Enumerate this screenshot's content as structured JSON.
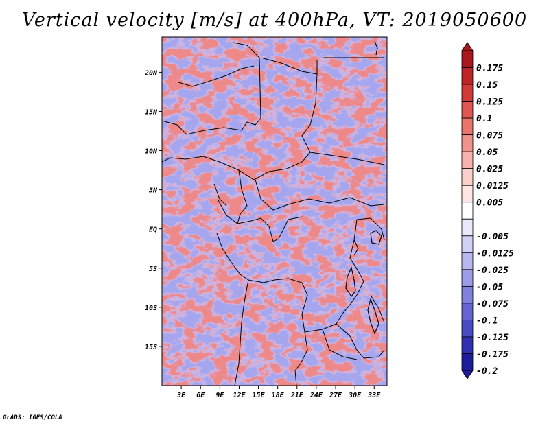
{
  "chart_data": {
    "type": "heatmap",
    "title": "Vertical velocity [m/s] at 400hPa, VT: 2019050600",
    "credit": "GrADS: IGES/COLA",
    "variable": "Vertical velocity",
    "units": "m/s",
    "level": "400hPa",
    "valid_time": "2019050600",
    "lon_range": [
      0,
      35
    ],
    "lat_range": [
      -20,
      24.5
    ],
    "x_ticks": [
      {
        "value": 3,
        "label": "3E"
      },
      {
        "value": 6,
        "label": "6E"
      },
      {
        "value": 9,
        "label": "9E"
      },
      {
        "value": 12,
        "label": "12E"
      },
      {
        "value": 15,
        "label": "15E"
      },
      {
        "value": 18,
        "label": "18E"
      },
      {
        "value": 21,
        "label": "21E"
      },
      {
        "value": 24,
        "label": "24E"
      },
      {
        "value": 27,
        "label": "27E"
      },
      {
        "value": 30,
        "label": "30E"
      },
      {
        "value": 33,
        "label": "33E"
      }
    ],
    "y_ticks": [
      {
        "value": 20,
        "label": "20N"
      },
      {
        "value": 15,
        "label": "15N"
      },
      {
        "value": 10,
        "label": "10N"
      },
      {
        "value": 5,
        "label": "5N"
      },
      {
        "value": 0,
        "label": "EQ"
      },
      {
        "value": -5,
        "label": "5S"
      },
      {
        "value": -10,
        "label": "10S"
      },
      {
        "value": -15,
        "label": "15S"
      }
    ],
    "colorbar": {
      "levels": [
        {
          "label": "0.175",
          "color": "#a8171d"
        },
        {
          "label": "0.15",
          "color": "#be2326"
        },
        {
          "label": "0.125",
          "color": "#d03a37"
        },
        {
          "label": "0.1",
          "color": "#e0554f"
        },
        {
          "label": "0.075",
          "color": "#e9746c"
        },
        {
          "label": "0.05",
          "color": "#f0938b"
        },
        {
          "label": "0.025",
          "color": "#f6b3ad"
        },
        {
          "label": "0.0125",
          "color": "#fad0cb"
        },
        {
          "label": "0.005",
          "color": "#fde6e3"
        },
        {
          "label": "",
          "color": "#ffffff"
        },
        {
          "label": "-0.005",
          "color": "#e9e9fb"
        },
        {
          "label": "-0.0125",
          "color": "#d2d2f6"
        },
        {
          "label": "-0.025",
          "color": "#b8b8f0"
        },
        {
          "label": "-0.05",
          "color": "#9c9ce9"
        },
        {
          "label": "-0.075",
          "color": "#8080df"
        },
        {
          "label": "-0.1",
          "color": "#6464d3"
        },
        {
          "label": "-0.125",
          "color": "#4a4ac4"
        },
        {
          "label": "-0.175",
          "color": "#3030b2"
        },
        {
          "label": "-0.2",
          "color": "#1c1c9c"
        }
      ],
      "top_arrow_color": "#a8171d",
      "bottom_arrow_color": "#1c1c9c"
    }
  }
}
